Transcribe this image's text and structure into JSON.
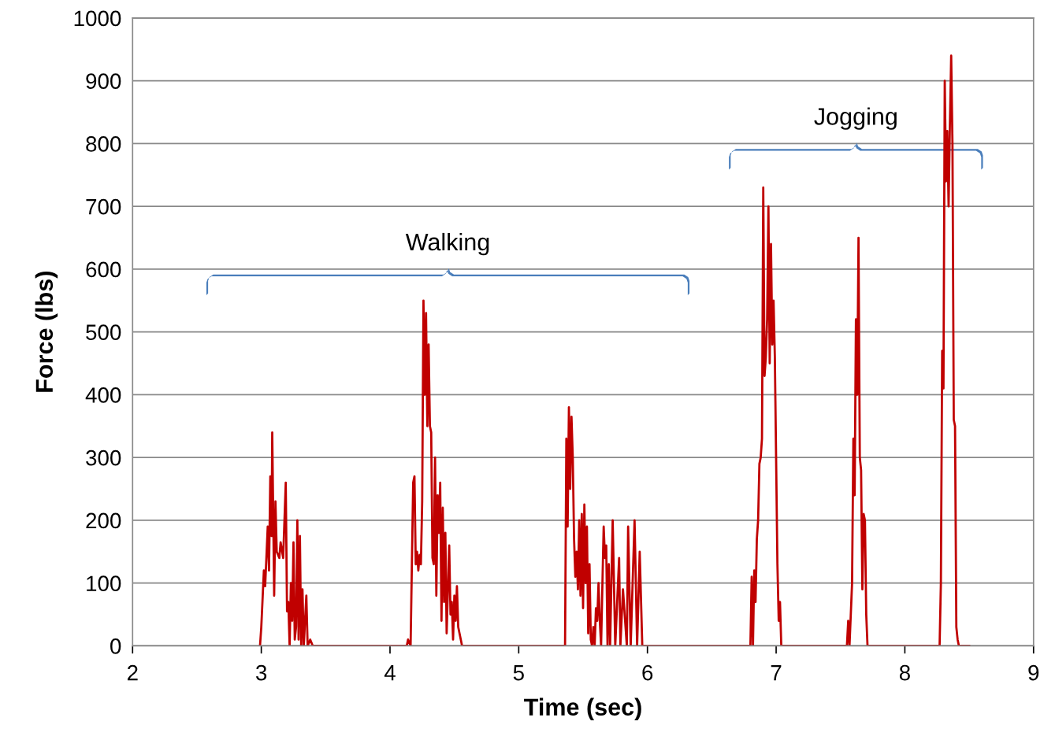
{
  "chart_data": {
    "type": "line",
    "xlabel": "Time (sec)",
    "ylabel": "Force (lbs)",
    "annotations": [
      "Walking",
      "Jogging"
    ],
    "xlim": [
      2,
      9
    ],
    "xticks": [
      2,
      3,
      4,
      5,
      6,
      7,
      8,
      9
    ],
    "ylim": [
      0,
      1000
    ],
    "yticks": [
      0,
      100,
      200,
      300,
      400,
      500,
      600,
      700,
      800,
      900,
      1000
    ],
    "grid": "y",
    "legend": false,
    "marker": "none",
    "line_style": "solid",
    "series": [
      {
        "color": "#c00000",
        "x": [
          2.99,
          3.0,
          3.02,
          3.03,
          3.05,
          3.06,
          3.07,
          3.08,
          3.085,
          3.1,
          3.11,
          3.12,
          3.14,
          3.15,
          3.17,
          3.19,
          3.2,
          3.21,
          3.22,
          3.23,
          3.24,
          3.25,
          3.26,
          3.27,
          3.28,
          3.29,
          3.3,
          3.31,
          3.32,
          3.33,
          3.35,
          3.36,
          3.38,
          3.4,
          4.13,
          4.14,
          4.16,
          4.18,
          4.19,
          4.2,
          4.21,
          4.22,
          4.23,
          4.24,
          4.25,
          4.26,
          4.27,
          4.28,
          4.29,
          4.3,
          4.31,
          4.32,
          4.33,
          4.34,
          4.35,
          4.36,
          4.37,
          4.38,
          4.39,
          4.4,
          4.41,
          4.42,
          4.43,
          4.44,
          4.46,
          4.47,
          4.48,
          4.49,
          4.5,
          4.51,
          4.52,
          4.53,
          4.54,
          4.56,
          5.36,
          5.37,
          5.38,
          5.39,
          5.4,
          5.41,
          5.42,
          5.43,
          5.44,
          5.45,
          5.46,
          5.47,
          5.48,
          5.49,
          5.5,
          5.51,
          5.52,
          5.53,
          5.54,
          5.55,
          5.56,
          5.57,
          5.58,
          5.59,
          5.6,
          5.61,
          5.62,
          5.63,
          5.64,
          5.66,
          5.67,
          5.68,
          5.69,
          5.7,
          5.71,
          5.73,
          5.75,
          5.78,
          5.79,
          5.81,
          5.84,
          5.85,
          5.87,
          5.9,
          5.92,
          5.94,
          5.96,
          6.8,
          6.81,
          6.82,
          6.83,
          6.84,
          6.85,
          6.86,
          6.87,
          6.88,
          6.89,
          6.9,
          6.91,
          6.92,
          6.93,
          6.94,
          6.95,
          6.96,
          6.97,
          6.98,
          6.99,
          7.01,
          7.02,
          7.03,
          7.04,
          7.55,
          7.56,
          7.57,
          7.59,
          7.6,
          7.61,
          7.62,
          7.63,
          7.64,
          7.65,
          7.66,
          7.67,
          7.68,
          7.69,
          7.7,
          7.71,
          8.27,
          8.28,
          8.29,
          8.3,
          8.31,
          8.32,
          8.33,
          8.34,
          8.35,
          8.36,
          8.37,
          8.38,
          8.39,
          8.4,
          8.41,
          8.42,
          8.5
        ],
        "values": [
          0,
          30,
          120,
          95,
          190,
          120,
          270,
          175,
          340,
          80,
          230,
          150,
          140,
          165,
          140,
          260,
          55,
          70,
          0,
          100,
          40,
          165,
          10,
          30,
          200,
          10,
          175,
          0,
          90,
          0,
          80,
          0,
          10,
          0,
          0,
          10,
          0,
          260,
          270,
          130,
          150,
          120,
          145,
          130,
          230,
          550,
          400,
          530,
          350,
          480,
          350,
          340,
          140,
          130,
          300,
          80,
          240,
          180,
          260,
          40,
          220,
          70,
          180,
          20,
          160,
          50,
          70,
          10,
          80,
          40,
          95,
          30,
          20,
          0,
          0,
          330,
          190,
          380,
          250,
          365,
          300,
          170,
          110,
          150,
          90,
          200,
          80,
          210,
          60,
          225,
          100,
          190,
          20,
          130,
          10,
          0,
          30,
          0,
          60,
          40,
          100,
          40,
          0,
          190,
          140,
          160,
          0,
          130,
          0,
          200,
          0,
          140,
          0,
          90,
          0,
          190,
          0,
          200,
          0,
          150,
          0,
          0,
          110,
          0,
          120,
          70,
          170,
          200,
          290,
          300,
          330,
          730,
          430,
          460,
          520,
          700,
          450,
          640,
          480,
          550,
          460,
          130,
          40,
          70,
          0,
          0,
          40,
          0,
          100,
          330,
          240,
          520,
          400,
          650,
          300,
          280,
          90,
          210,
          200,
          50,
          0,
          0,
          100,
          470,
          410,
          900,
          740,
          820,
          700,
          830,
          940,
          800,
          360,
          350,
          30,
          10,
          0,
          0
        ]
      }
    ]
  }
}
